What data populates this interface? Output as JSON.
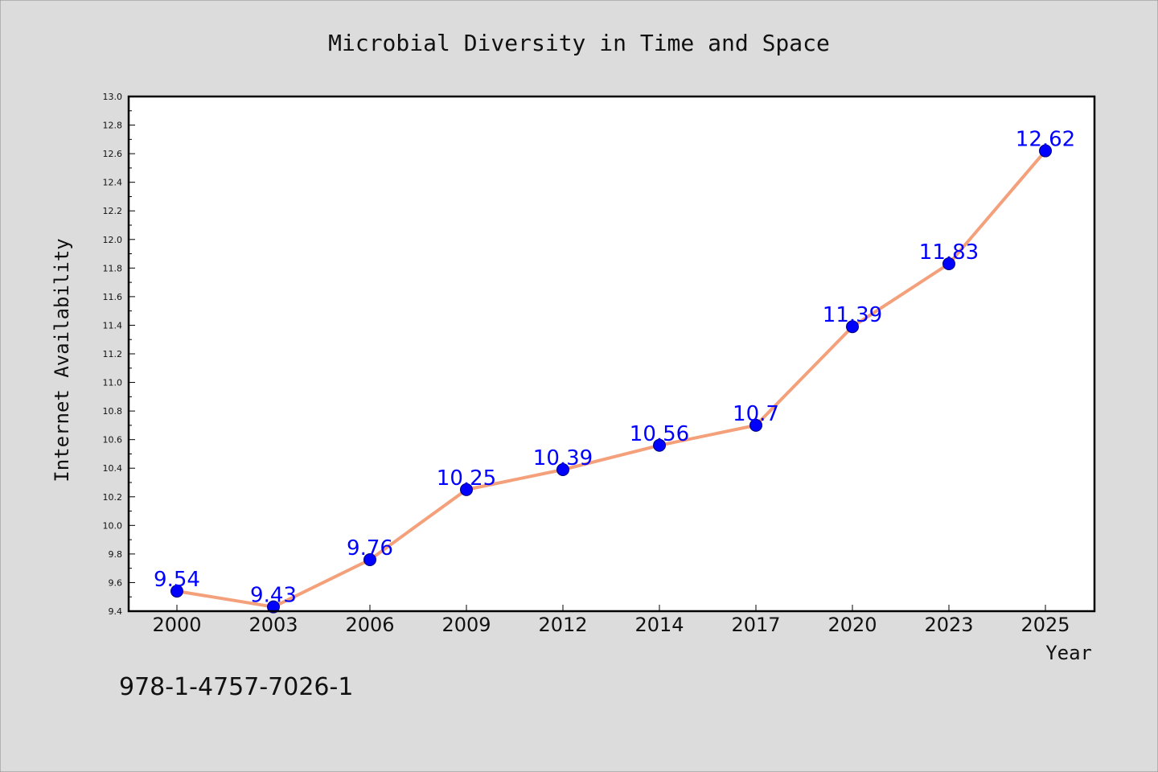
{
  "chart_data": {
    "type": "line",
    "title": "Microbial Diversity in Time and Space",
    "xlabel": "Year",
    "ylabel": "Internet Availability",
    "categories": [
      "2000",
      "2003",
      "2006",
      "2009",
      "2012",
      "2014",
      "2017",
      "2020",
      "2023",
      "2025"
    ],
    "series": [
      {
        "values": [
          9.54,
          9.43,
          9.76,
          10.25,
          10.39,
          10.56,
          10.7,
          11.39,
          11.83,
          12.62
        ],
        "labels": [
          "9.54",
          "9.43",
          "9.76",
          "10.25",
          "10.39",
          "10.56",
          "10.7",
          "11.39",
          "11.83",
          "12.62"
        ],
        "line_color": "#f4a07a",
        "marker_color": "#0000ff"
      }
    ],
    "ylim": [
      9.4,
      13.0
    ],
    "yticks": [
      "9.4",
      "9.6",
      "9.8",
      "10.0",
      "10.2",
      "10.4",
      "10.6",
      "10.8",
      "11.0",
      "11.2",
      "11.4",
      "11.6",
      "11.8",
      "12.0",
      "12.2",
      "12.4",
      "12.6",
      "12.8",
      "13.0"
    ],
    "grid": false,
    "legend": "none"
  },
  "footnote": "978-1-4757-7026-1",
  "colors": {
    "background": "#dcdcdc",
    "plot_background": "#ffffff",
    "line": "#f4a07a",
    "marker": "#0000ff",
    "data_label": "#0000ff"
  }
}
